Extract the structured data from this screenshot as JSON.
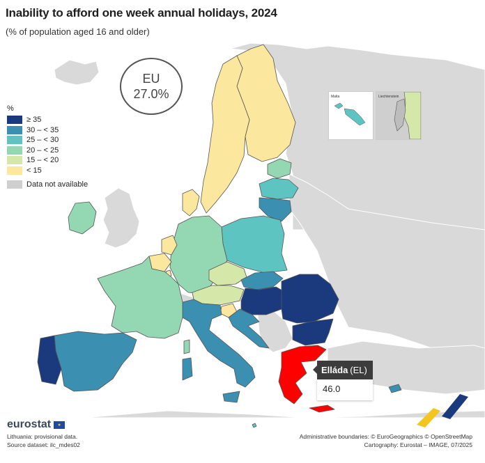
{
  "header": {
    "title": "Inability to afford one week annual holidays, 2024",
    "subtitle": "(% of population aged 16 and older)"
  },
  "eu_badge": {
    "label": "EU",
    "value": "27.0%"
  },
  "legend": {
    "unit": "%",
    "classes": [
      {
        "label": "≥ 35",
        "color": "#1b3a7e"
      },
      {
        "label": "30 – < 35",
        "color": "#3b8fb1"
      },
      {
        "label": "25 – < 30",
        "color": "#5ec4c1"
      },
      {
        "label": "20 – < 25",
        "color": "#94d7b3"
      },
      {
        "label": "15 – < 20",
        "color": "#d5e8a9"
      },
      {
        "label": "< 15",
        "color": "#fbe79d"
      }
    ],
    "na": {
      "label": "Data not available",
      "color": "#cfcfcf"
    }
  },
  "insets": {
    "malta": "Malta",
    "liechtenstein": "Liechtenstein"
  },
  "tooltip": {
    "country": "Elláda",
    "code": "(EL)",
    "value": "46.0"
  },
  "colors": {
    "highlight": "#ff0000",
    "land_other": "#d9d9d9",
    "border": "#555555",
    "sea": "#ffffff"
  },
  "footer": {
    "logo": "eurostat",
    "note": "Lithuania: provisional data.",
    "source": "Source dataset: ilc_mdes02",
    "boundaries": "Administrative boundaries: © EuroGeographics © OpenStreetMap",
    "cartography": "Cartography: Eurostat – IMAGE, 07/2025"
  }
}
